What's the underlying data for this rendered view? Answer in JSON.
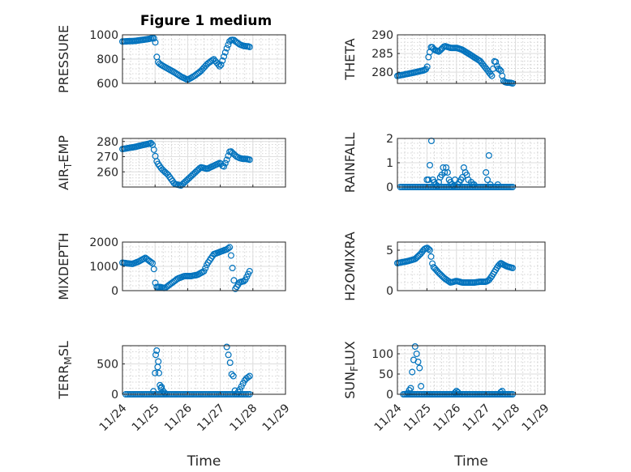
{
  "figure_title": "Figure 1 medium",
  "colors": {
    "marker": "#0072bd",
    "axis": "#262626",
    "grid": "#dedede",
    "background": "#ffffff"
  },
  "chart_data": [
    {
      "type": "scatter",
      "ylabel": "PRESSURE",
      "ylim": [
        600,
        1000
      ],
      "yticks": [
        600,
        800,
        1000
      ],
      "xlim": [
        0,
        5
      ],
      "x_tick_labels": [
        "11/24",
        "11/25",
        "11/26",
        "11/27",
        "11/28",
        "11/29"
      ],
      "xlabel": "",
      "shape_x": [
        0,
        0.4,
        0.8,
        0.95,
        1.0,
        1.05,
        1.1,
        1.2,
        1.4,
        1.6,
        1.8,
        2.0,
        2.2,
        2.4,
        2.6,
        2.8,
        3.0,
        3.2,
        3.3,
        3.4,
        3.5,
        3.6,
        3.7,
        3.8,
        3.85,
        3.9
      ],
      "shape_y": [
        945,
        950,
        965,
        975,
        960,
        820,
        770,
        750,
        720,
        690,
        655,
        630,
        660,
        700,
        760,
        800,
        735,
        890,
        955,
        960,
        940,
        920,
        910,
        905,
        905,
        900
      ],
      "points": 90
    },
    {
      "type": "scatter",
      "ylabel": "THETA",
      "ylim": [
        277,
        290
      ],
      "yticks": [
        280,
        285,
        290
      ],
      "xlim": [
        0,
        5
      ],
      "x_tick_labels": [
        "11/24",
        "11/25",
        "11/26",
        "11/27",
        "11/28",
        "11/29"
      ],
      "xlabel": "",
      "shape_x": [
        0,
        0.5,
        0.9,
        1.0,
        1.05,
        1.15,
        1.25,
        1.4,
        1.6,
        1.8,
        2.0,
        2.2,
        2.4,
        2.6,
        2.8,
        3.0,
        3.1,
        3.2,
        3.3,
        3.4,
        3.5,
        3.6,
        3.7,
        3.8,
        3.9
      ],
      "shape_y": [
        279,
        279.8,
        280.5,
        281,
        284,
        287,
        286,
        285.5,
        287,
        286.5,
        286.5,
        286,
        285,
        284,
        283,
        281,
        280,
        279,
        283.5,
        281,
        280.5,
        277.5,
        277.2,
        277.2,
        277
      ],
      "points": 90
    },
    {
      "type": "scatter",
      "ylabel": "AIR_TEMP",
      "ylim": [
        250,
        282
      ],
      "yticks": [
        260,
        270,
        280
      ],
      "xlim": [
        0,
        5
      ],
      "x_tick_labels": [
        "11/24",
        "11/25",
        "11/26",
        "11/27",
        "11/28",
        "11/29"
      ],
      "xlabel": "",
      "shape_x": [
        0,
        0.4,
        0.8,
        0.9,
        0.95,
        1.0,
        1.05,
        1.1,
        1.2,
        1.4,
        1.6,
        1.8,
        2.0,
        2.2,
        2.4,
        2.6,
        2.8,
        3.0,
        3.1,
        3.2,
        3.3,
        3.4,
        3.5,
        3.6,
        3.7,
        3.8,
        3.9
      ],
      "shape_y": [
        275,
        276.5,
        278.5,
        279,
        276,
        271,
        267,
        265,
        262,
        258,
        252,
        251,
        255,
        259,
        263,
        262,
        264,
        266,
        263,
        268,
        274,
        272,
        270,
        269,
        268.5,
        268.5,
        268
      ],
      "points": 90
    },
    {
      "type": "scatter",
      "ylabel": "RAINFALL",
      "ylim": [
        0,
        2
      ],
      "yticks": [
        0,
        1,
        2
      ],
      "xlim": [
        0,
        5
      ],
      "x_tick_labels": [
        "11/24",
        "11/25",
        "11/26",
        "11/27",
        "11/28",
        "11/29"
      ],
      "xlabel": "",
      "baseline": 0,
      "baseline_x": [
        0.1,
        3.9
      ],
      "baseline_points": 70,
      "spike_x": [
        1.0,
        1.05,
        1.1,
        1.15,
        1.2,
        1.25,
        1.3,
        1.35,
        1.4,
        1.45,
        1.5,
        1.55,
        1.6,
        1.65,
        1.7,
        1.75,
        1.8,
        1.85,
        1.9,
        1.95,
        2.05,
        2.1,
        2.15,
        2.2,
        2.25,
        2.3,
        2.35,
        2.4,
        2.5,
        2.55,
        2.6,
        3.0,
        3.05,
        3.1,
        3.15,
        3.4
      ],
      "spike_y": [
        0.3,
        0.3,
        0.9,
        1.9,
        0.3,
        0.2,
        0.1,
        0.05,
        0.2,
        0.4,
        0.5,
        0.8,
        0.6,
        0.8,
        0.6,
        0.3,
        0.2,
        0.1,
        0.05,
        0.3,
        0.1,
        0.2,
        0.3,
        0.4,
        0.8,
        0.6,
        0.5,
        0.3,
        0.2,
        0.1,
        0.1,
        0.6,
        0.3,
        1.3,
        0.1,
        0.1
      ]
    },
    {
      "type": "scatter",
      "ylabel": "MIXDEPTH",
      "ylim": [
        0,
        2000
      ],
      "yticks": [
        0,
        1000,
        2000
      ],
      "xlim": [
        0,
        5
      ],
      "x_tick_labels": [
        "11/24",
        "11/25",
        "11/26",
        "11/27",
        "11/28",
        "11/29"
      ],
      "xlabel": "",
      "shape_x": [
        0,
        0.3,
        0.5,
        0.7,
        0.85,
        0.95,
        1.0,
        1.05,
        1.15,
        1.3,
        1.5,
        1.7,
        1.9,
        2.1,
        2.3,
        2.5,
        2.6,
        2.8,
        3.0,
        3.1,
        3.2,
        3.3,
        3.45,
        3.6,
        3.75,
        3.9
      ],
      "shape_y": [
        1150,
        1100,
        1200,
        1350,
        1200,
        1100,
        350,
        150,
        150,
        100,
        300,
        500,
        600,
        600,
        650,
        800,
        1100,
        1500,
        1600,
        1650,
        1700,
        1800,
        50,
        350,
        400,
        800
      ],
      "points": 90
    },
    {
      "type": "scatter",
      "ylabel": "H2OMIXRA",
      "ylim": [
        0,
        6
      ],
      "yticks": [
        0,
        5
      ],
      "xlim": [
        0,
        5
      ],
      "x_tick_labels": [
        "11/24",
        "11/25",
        "11/26",
        "11/27",
        "11/28",
        "11/29"
      ],
      "xlabel": "",
      "shape_x": [
        0,
        0.3,
        0.6,
        0.8,
        0.9,
        1.0,
        1.1,
        1.2,
        1.4,
        1.6,
        1.8,
        2.0,
        2.2,
        2.4,
        2.6,
        2.8,
        3.0,
        3.1,
        3.2,
        3.3,
        3.4,
        3.5,
        3.6,
        3.7,
        3.8,
        3.9
      ],
      "shape_y": [
        3.4,
        3.6,
        3.9,
        4.6,
        5.1,
        5.3,
        5.0,
        3.0,
        2.2,
        1.5,
        1.0,
        1.2,
        1.0,
        1.0,
        1.0,
        1.1,
        1.1,
        1.3,
        1.8,
        2.4,
        3.0,
        3.4,
        3.2,
        3.0,
        2.9,
        2.8
      ],
      "points": 90
    },
    {
      "type": "scatter",
      "ylabel": "TERR_MSL",
      "ylim": [
        0,
        800
      ],
      "yticks": [
        0,
        500
      ],
      "xlim": [
        0,
        5
      ],
      "x_tick_labels": [
        "11/24",
        "11/25",
        "11/26",
        "11/27",
        "11/28",
        "11/29"
      ],
      "xlabel": "Time",
      "baseline": 0,
      "baseline_x": [
        0.1,
        3.9
      ],
      "baseline_points": 70,
      "spike_x": [
        0.95,
        1.0,
        1.02,
        1.05,
        1.08,
        1.1,
        1.12,
        1.15,
        1.18,
        1.2,
        1.25,
        1.3,
        3.2,
        3.25,
        3.3,
        3.35,
        3.4,
        3.45,
        3.5,
        3.55,
        3.6,
        3.65,
        3.7,
        3.75,
        3.8,
        3.85,
        3.9
      ],
      "spike_y": [
        50,
        350,
        650,
        720,
        450,
        540,
        350,
        150,
        100,
        120,
        50,
        20,
        780,
        650,
        520,
        330,
        300,
        60,
        5,
        40,
        80,
        130,
        180,
        230,
        260,
        280,
        300
      ]
    },
    {
      "type": "scatter",
      "ylabel": "SUN_FLUX",
      "ylim": [
        0,
        120
      ],
      "yticks": [
        0,
        50,
        100
      ],
      "xlim": [
        0,
        5
      ],
      "x_tick_labels": [
        "11/24",
        "11/25",
        "11/26",
        "11/27",
        "11/28",
        "11/29"
      ],
      "xlabel": "Time",
      "baseline": 0,
      "baseline_x": [
        0.2,
        3.9
      ],
      "baseline_points": 70,
      "spike_x": [
        0.35,
        0.4,
        0.45,
        0.5,
        0.55,
        0.6,
        0.65,
        0.7,
        0.75,
        0.8,
        1.95,
        2.0,
        2.05,
        3.5,
        3.55
      ],
      "spike_y": [
        3,
        10,
        15,
        55,
        85,
        118,
        100,
        80,
        65,
        20,
        4,
        8,
        5,
        5,
        8
      ]
    }
  ]
}
